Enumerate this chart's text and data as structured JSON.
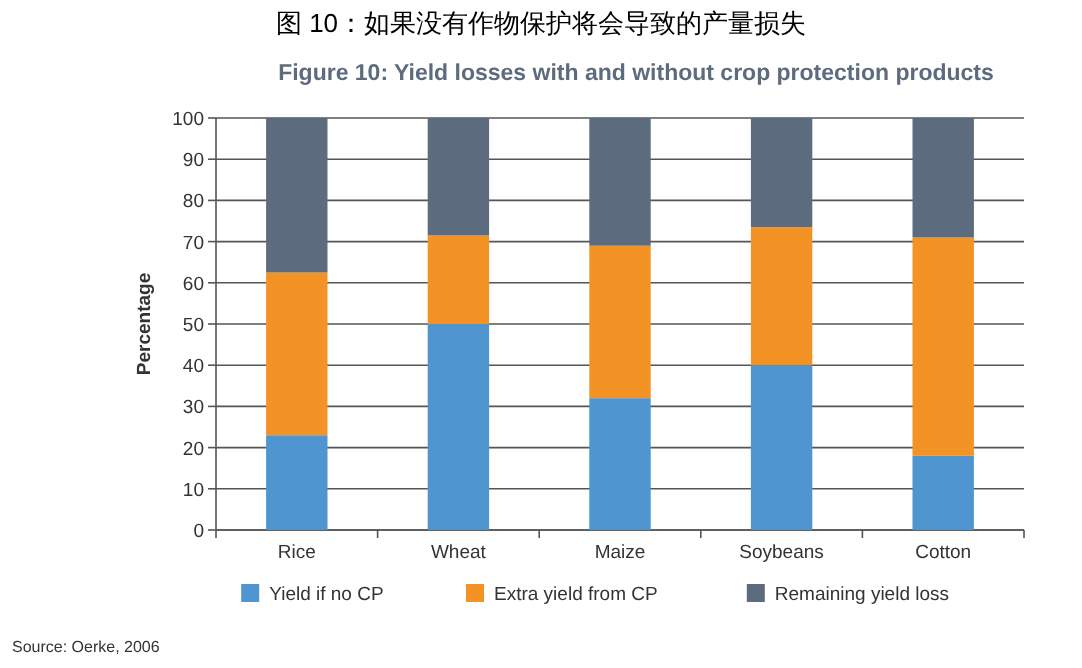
{
  "chart_data": {
    "type": "bar",
    "stacked": true,
    "title": "图 10：如果没有作物保护将会导致的产量损失",
    "subtitle": "Figure 10: Yield losses with and without crop protection products",
    "ylabel": "Percentage",
    "categories": [
      "Rice",
      "Wheat",
      "Maize",
      "Soybeans",
      "Cotton"
    ],
    "series": [
      {
        "name": "Yield if no CP",
        "color": "#4f95d0",
        "values": [
          23,
          50,
          32,
          40,
          18
        ]
      },
      {
        "name": "Extra yield from CP",
        "color": "#f39325",
        "values": [
          39.5,
          21.5,
          37,
          33.5,
          53
        ]
      },
      {
        "name": "Remaining yield loss",
        "color": "#5d6b7e",
        "values": [
          37.5,
          28.5,
          31,
          26.5,
          29
        ]
      }
    ],
    "ylim": [
      0,
      100
    ],
    "yticks": [
      0,
      10,
      20,
      30,
      40,
      50,
      60,
      70,
      80,
      90,
      100
    ],
    "grid": "y",
    "legend": "bottom",
    "annotations": [
      "Source: Oerke, 2006"
    ]
  }
}
